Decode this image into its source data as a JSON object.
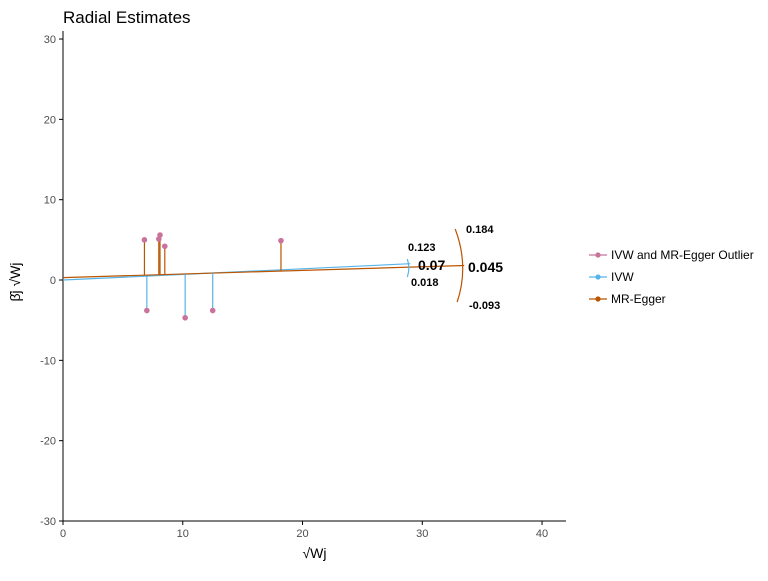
{
  "chart_data": {
    "type": "scatter",
    "title": "Radial Estimates",
    "xlabel": "√Wj",
    "ylabel": "β̂j √Wj",
    "xlim": [
      0,
      42
    ],
    "ylim": [
      -30,
      31
    ],
    "x_ticks": [
      0,
      10,
      20,
      30,
      40
    ],
    "y_ticks": [
      -30,
      -20,
      -10,
      0,
      10,
      20,
      30
    ],
    "grid": false,
    "legend_position": "right",
    "colors": {
      "outlier": "#C8739B",
      "ivw": "#56B4E9",
      "egger": "#BB5500",
      "axis": "#000000",
      "tick_text": "#4D4D4D"
    },
    "series": [
      {
        "name": "IVW and MR-Egger Outlier",
        "x": [
          6.8,
          7.0,
          8.0,
          8.1,
          8.5,
          10.2,
          12.5,
          18.2
        ],
        "y": [
          5.0,
          -3.8,
          5.1,
          5.6,
          4.2,
          -4.7,
          -3.8,
          4.9
        ]
      }
    ],
    "fit_lines": [
      {
        "name": "IVW",
        "slope": 0.07,
        "intercept": 0,
        "x_range": [
          0,
          29
        ]
      },
      {
        "name": "MR-Egger",
        "slope": 0.045,
        "intercept": 0.3,
        "x_range": [
          0,
          33.5
        ]
      }
    ],
    "legend": [
      {
        "label": "IVW and MR-Egger Outlier",
        "color": "#C8739B"
      },
      {
        "label": "IVW",
        "color": "#56B4E9"
      },
      {
        "label": "MR-Egger",
        "color": "#BB5500"
      }
    ],
    "annotations": {
      "ivw": {
        "estimate": "0.07",
        "upper": "0.123",
        "lower": "0.018"
      },
      "egger": {
        "estimate": "0.045",
        "upper": "0.184",
        "lower": "-0.093"
      }
    }
  }
}
